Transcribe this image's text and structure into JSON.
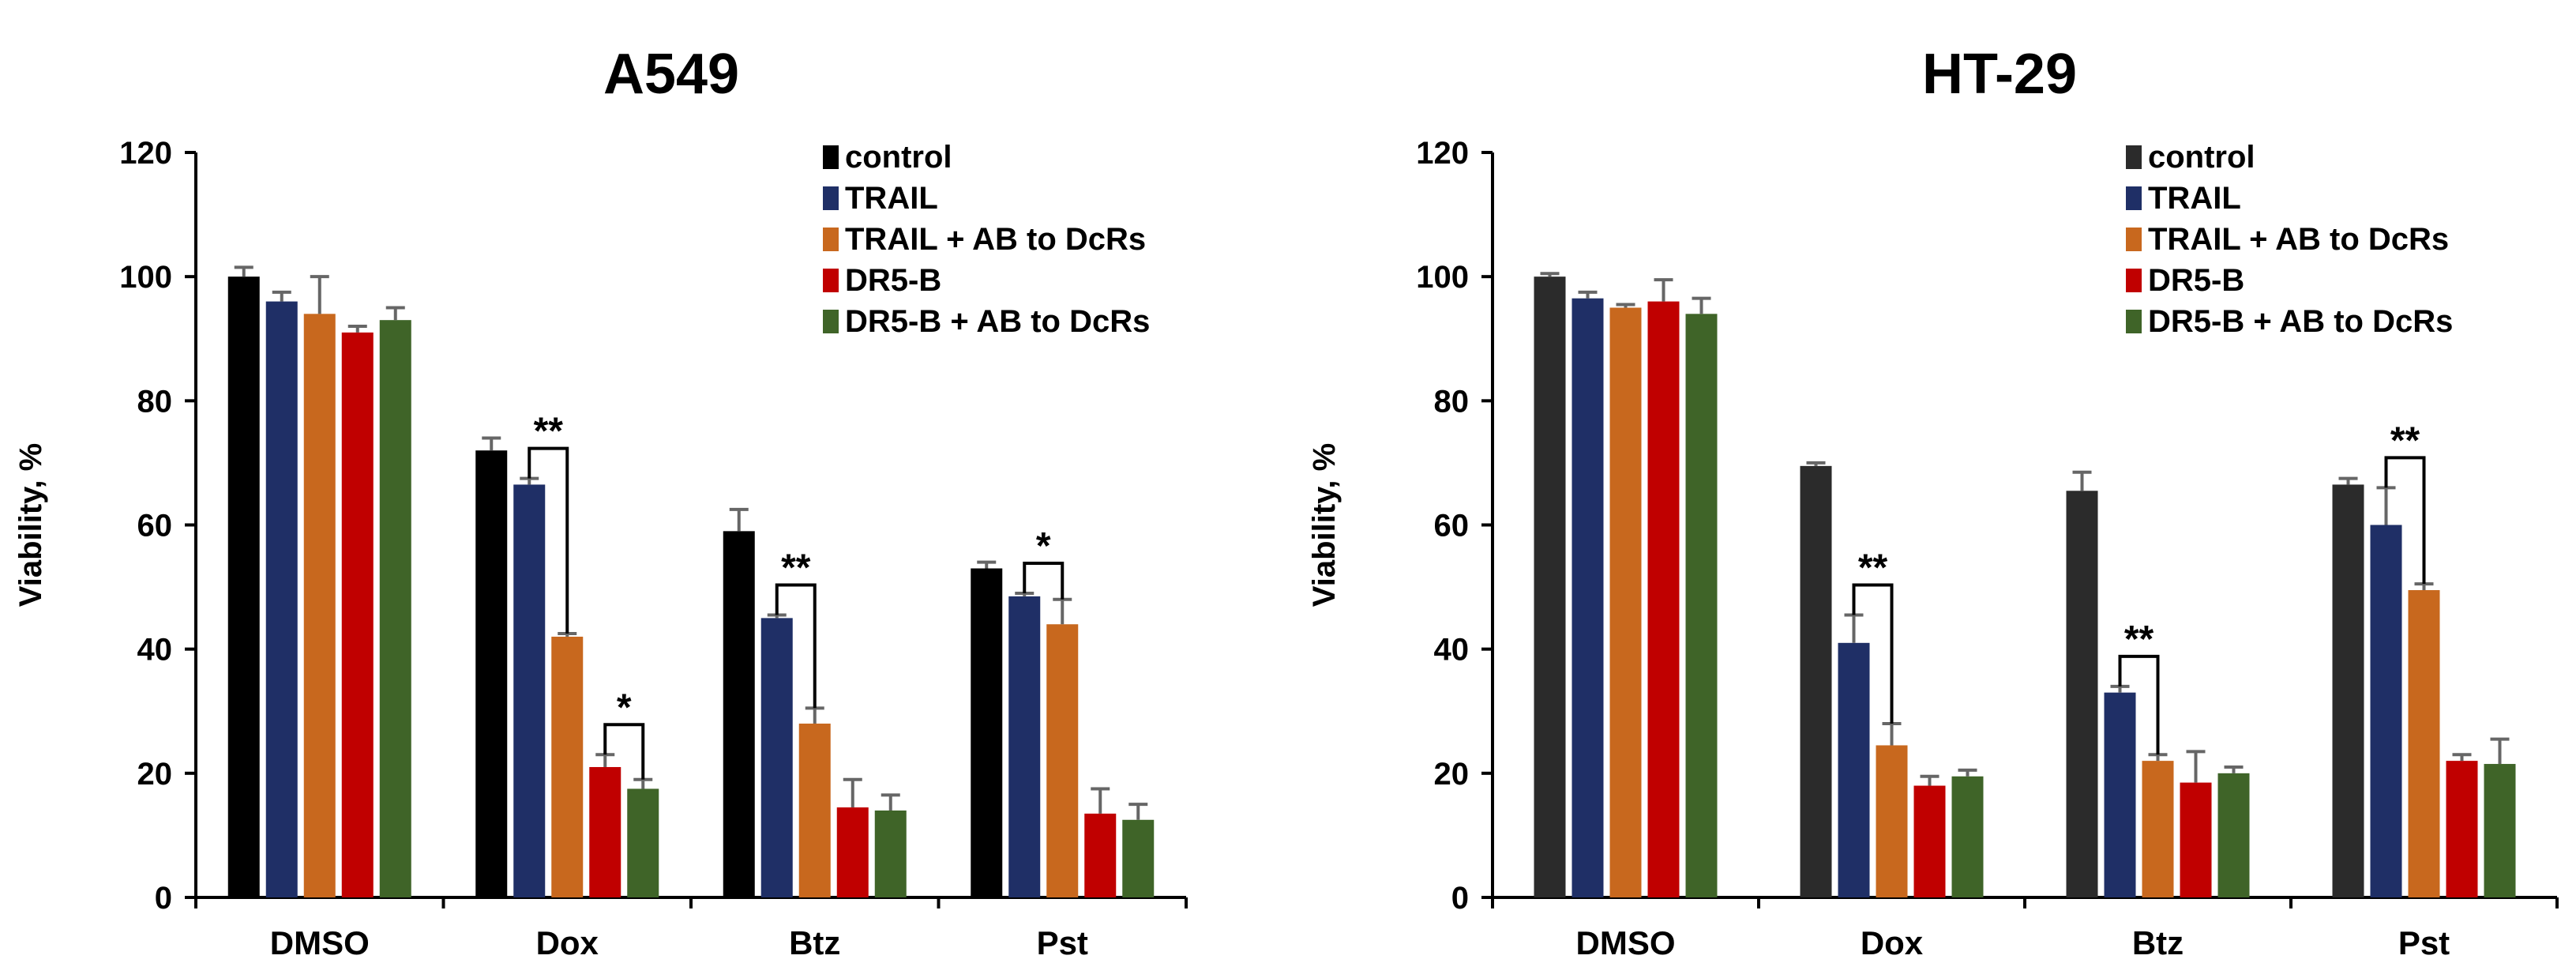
{
  "colors": {
    "control": "#000000",
    "control_ht29": "#2b2b2b",
    "TRAIL": "#1f2f66",
    "TRAIL_AB": "#c8681e",
    "DR5B": "#c00000",
    "DR5B_AB": "#3f6428",
    "error": "#666666"
  },
  "chart_data": [
    {
      "type": "bar",
      "title": "A549",
      "xlabel": "",
      "ylabel": "Viability, %",
      "ylim": [
        0,
        120
      ],
      "yticks": [
        "0",
        "20",
        "40",
        "60",
        "80",
        "100",
        "120"
      ],
      "categories": [
        "DMSO",
        "Dox",
        "Btz",
        "Pst"
      ],
      "legend_position": "top-right",
      "series": [
        {
          "name": "control",
          "color_key": "control",
          "values": [
            100,
            72,
            59,
            53
          ],
          "errors": [
            1.5,
            2,
            3.5,
            1
          ]
        },
        {
          "name": "TRAIL",
          "color_key": "TRAIL",
          "values": [
            96,
            66.5,
            45,
            48.5
          ],
          "errors": [
            1.5,
            1,
            0.5,
            0.5
          ]
        },
        {
          "name": "TRAIL + AB to DcRs",
          "color_key": "TRAIL_AB",
          "values": [
            94,
            42,
            28,
            44
          ],
          "errors": [
            6,
            0.5,
            2.5,
            4
          ]
        },
        {
          "name": "DR5-B",
          "color_key": "DR5B",
          "values": [
            91,
            21,
            14.5,
            13.5
          ],
          "errors": [
            1,
            2,
            4.5,
            4
          ]
        },
        {
          "name": "DR5-B + AB to DcRs",
          "color_key": "DR5B_AB",
          "values": [
            93,
            17.5,
            14,
            12.5
          ],
          "errors": [
            2,
            1.5,
            2.5,
            2.5
          ]
        }
      ],
      "significance": [
        {
          "category": 1,
          "from_series": 1,
          "to_series": 2,
          "label": "**"
        },
        {
          "category": 1,
          "from_series": 3,
          "to_series": 4,
          "label": "*"
        },
        {
          "category": 2,
          "from_series": 1,
          "to_series": 2,
          "label": "**"
        },
        {
          "category": 3,
          "from_series": 1,
          "to_series": 2,
          "label": "*"
        }
      ]
    },
    {
      "type": "bar",
      "title": "HT-29",
      "xlabel": "",
      "ylabel": "Viability, %",
      "ylim": [
        0,
        120
      ],
      "yticks": [
        "0",
        "20",
        "40",
        "60",
        "80",
        "100",
        "120"
      ],
      "categories": [
        "DMSO",
        "Dox",
        "Btz",
        "Pst"
      ],
      "legend_position": "top-right",
      "series": [
        {
          "name": "control",
          "color_key": "control_ht29",
          "values": [
            100,
            69.5,
            65.5,
            66.5
          ],
          "errors": [
            0.5,
            0.5,
            3,
            1
          ]
        },
        {
          "name": "TRAIL",
          "color_key": "TRAIL",
          "values": [
            96.5,
            41,
            33,
            60
          ],
          "errors": [
            1,
            4.5,
            1,
            6
          ]
        },
        {
          "name": "TRAIL + AB to DcRs",
          "color_key": "TRAIL_AB",
          "values": [
            95,
            24.5,
            22,
            49.5
          ],
          "errors": [
            0.5,
            3.5,
            1,
            1
          ]
        },
        {
          "name": "DR5-B",
          "color_key": "DR5B",
          "values": [
            96,
            18,
            18.5,
            22
          ],
          "errors": [
            3.5,
            1.5,
            5,
            1
          ]
        },
        {
          "name": "DR5-B + AB to DcRs",
          "color_key": "DR5B_AB",
          "values": [
            94,
            19.5,
            20,
            21.5
          ],
          "errors": [
            2.5,
            1,
            1,
            4
          ]
        }
      ],
      "significance": [
        {
          "category": 1,
          "from_series": 1,
          "to_series": 2,
          "label": "**"
        },
        {
          "category": 2,
          "from_series": 1,
          "to_series": 2,
          "label": "**"
        },
        {
          "category": 3,
          "from_series": 1,
          "to_series": 2,
          "label": "**"
        }
      ]
    }
  ]
}
